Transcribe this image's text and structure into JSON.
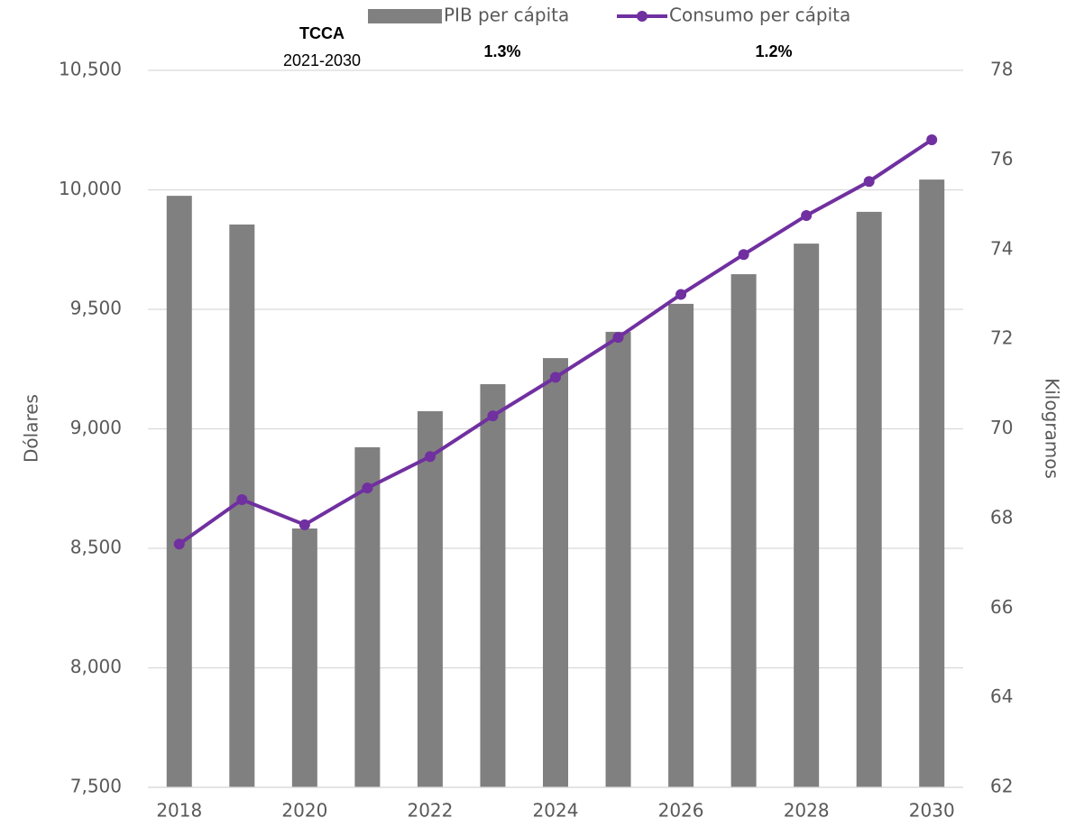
{
  "chart_data": {
    "type": "bar_line",
    "categories": [
      "2018",
      null,
      "2020",
      null,
      "2022",
      null,
      "2024",
      null,
      "2026",
      null,
      "2028",
      null,
      "2030"
    ],
    "series": [
      {
        "name": "PIB per cápita",
        "type": "bar",
        "color": "#808080",
        "values": [
          9975,
          9855,
          8583,
          8923,
          9074,
          9187,
          9296,
          9406,
          9523,
          9647,
          9775,
          9908,
          10043
        ]
      },
      {
        "name": "Consumo per cápita",
        "type": "line",
        "axis": "y2",
        "color": "#7030a0",
        "values": [
          67.43,
          68.42,
          67.86,
          68.68,
          69.38,
          70.29,
          71.15,
          72.04,
          73.0,
          73.89,
          74.76,
          75.52,
          76.45
        ]
      }
    ],
    "ylabel": "Dólares",
    "y2label": "Kilogramos",
    "ylim": [
      7500,
      10500
    ],
    "yticks": [
      {
        "value": 7500,
        "label": "7,500"
      },
      {
        "value": 8000,
        "label": "8,000"
      },
      {
        "value": 8500,
        "label": "8,500"
      },
      {
        "value": 9000,
        "label": "9,000"
      },
      {
        "value": 9500,
        "label": "9,500"
      },
      {
        "value": 10000,
        "label": "10,000"
      },
      {
        "value": 10500,
        "label": "10,500"
      }
    ],
    "y2lim": [
      62,
      78
    ],
    "y2ticks": [
      62,
      64,
      66,
      68,
      70,
      72,
      74,
      76,
      78
    ],
    "grid": true,
    "legend": "top",
    "annotations": [
      "TCCA",
      "2021-2030",
      "1.3%",
      "1.2%"
    ]
  }
}
